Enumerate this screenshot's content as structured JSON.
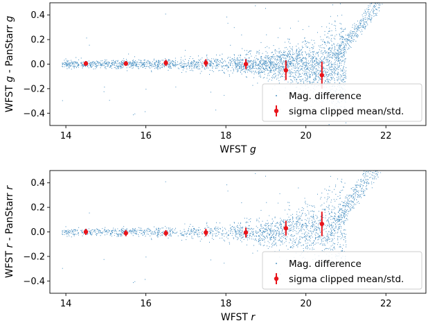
{
  "chart_data": [
    {
      "type": "scatter",
      "xlabel_prefix": "WFST ",
      "xlabel_var": "g",
      "ylabel_prefix": "WFST ",
      "ylabel_var": "g",
      "ylabel_mid": " - PanStarr ",
      "ylabel_var2": "g",
      "xlim": [
        13.6,
        23.0
      ],
      "ylim": [
        -0.5,
        0.5
      ],
      "xticks": [
        14,
        16,
        18,
        20,
        22
      ],
      "yticks": [
        -0.4,
        -0.2,
        0.0,
        0.2,
        0.4
      ],
      "colors": {
        "scatter": "#1f77b4",
        "errorbar": "#e8141b"
      },
      "legend_position": "lower-right",
      "series": [
        {
          "name": "Mag. difference",
          "kind": "scatter",
          "marker": "point"
        },
        {
          "name": "sigma clipped mean/std.",
          "kind": "errorbar",
          "x": [
            14.5,
            15.5,
            16.5,
            17.5,
            18.5,
            19.5,
            20.4
          ],
          "y": [
            0.005,
            0.005,
            0.01,
            0.01,
            0.0,
            -0.05,
            -0.09
          ],
          "yerr": [
            0.02,
            0.02,
            0.025,
            0.03,
            0.04,
            0.08,
            0.11
          ]
        }
      ]
    },
    {
      "type": "scatter",
      "xlabel_prefix": "WFST ",
      "xlabel_var": "r",
      "ylabel_prefix": "WFST ",
      "ylabel_var": "r",
      "ylabel_mid": " - PanStarr ",
      "ylabel_var2": "r",
      "xlim": [
        13.6,
        23.0
      ],
      "ylim": [
        -0.5,
        0.5
      ],
      "xticks": [
        14,
        16,
        18,
        20,
        22
      ],
      "yticks": [
        -0.4,
        -0.2,
        0.0,
        0.2,
        0.4
      ],
      "colors": {
        "scatter": "#1f77b4",
        "errorbar": "#e8141b"
      },
      "legend_position": "lower-right",
      "series": [
        {
          "name": "Mag. difference",
          "kind": "scatter",
          "marker": "point"
        },
        {
          "name": "sigma clipped mean/std.",
          "kind": "errorbar",
          "x": [
            14.5,
            15.5,
            16.5,
            17.5,
            18.5,
            19.5,
            20.4
          ],
          "y": [
            0.0,
            -0.01,
            -0.01,
            -0.005,
            -0.005,
            0.03,
            0.065
          ],
          "yerr": [
            0.025,
            0.025,
            0.025,
            0.03,
            0.04,
            0.06,
            0.1
          ]
        }
      ]
    }
  ]
}
